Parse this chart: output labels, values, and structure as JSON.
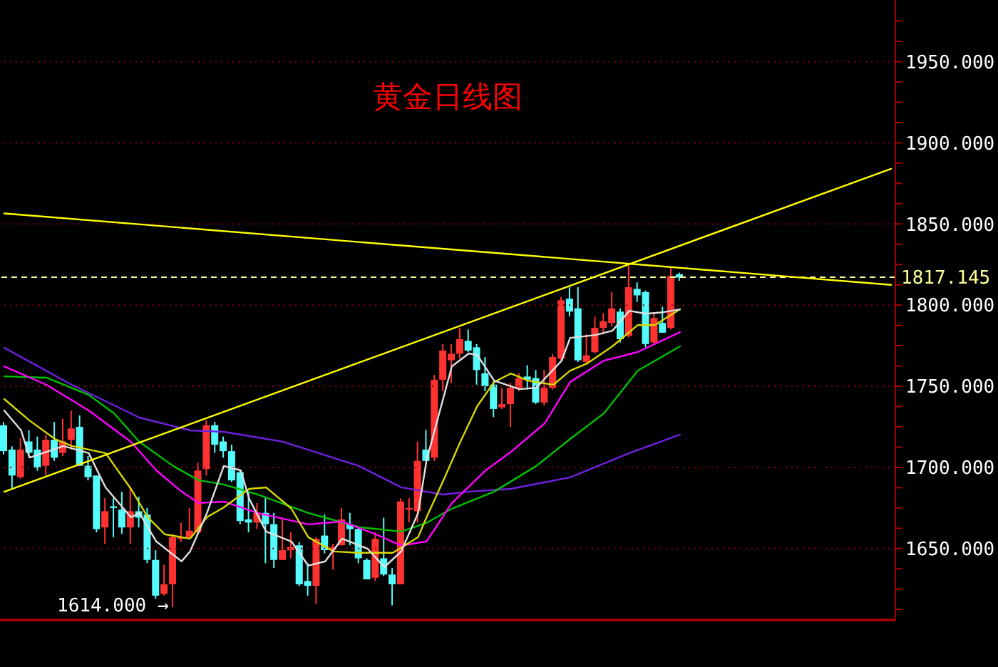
{
  "chart_data": {
    "type": "candlestick",
    "title": "黄金日线图",
    "categories": [
      null,
      null,
      null,
      null,
      null,
      null,
      null,
      null,
      null,
      null,
      null,
      null,
      null,
      null,
      null,
      null,
      null,
      null,
      null,
      null,
      null,
      null,
      null,
      null,
      null,
      null,
      null,
      null,
      null,
      null,
      null,
      null,
      null,
      null,
      null,
      null,
      null,
      null,
      null,
      null,
      null,
      null,
      null,
      null,
      null,
      null,
      null,
      null,
      null,
      null,
      null,
      null,
      null,
      null,
      null,
      null,
      null,
      null,
      null,
      null,
      null,
      null,
      null,
      null,
      null,
      null,
      null,
      null,
      null,
      null,
      null,
      null,
      null,
      null,
      null,
      null,
      null,
      null,
      null,
      null,
      null,
      null,
      null,
      null,
      null,
      null,
      null,
      null,
      null,
      null,
      null,
      null,
      null,
      null,
      null,
      null,
      null,
      null,
      null,
      null,
      null,
      null,
      null,
      null,
      null,
      null
    ],
    "ohlc": [
      [
        1726,
        1728,
        1708,
        1710
      ],
      [
        1711,
        1713,
        1687,
        1695
      ],
      [
        1694,
        1718,
        1693,
        1711
      ],
      [
        1716,
        1723,
        1707,
        1709
      ],
      [
        1711,
        1719,
        1698,
        1700
      ],
      [
        1701,
        1720,
        1695,
        1717
      ],
      [
        1717,
        1728,
        1704,
        1706
      ],
      [
        1709,
        1730,
        1707,
        1716
      ],
      [
        1717,
        1735,
        1711,
        1724
      ],
      [
        1725,
        1732,
        1701,
        1701
      ],
      [
        1701,
        1707,
        1692,
        1694
      ],
      [
        1695,
        1695,
        1660,
        1662
      ],
      [
        1663,
        1681,
        1653,
        1673
      ],
      [
        1676,
        1681,
        1657,
        1675
      ],
      [
        1674,
        1685,
        1659,
        1663
      ],
      [
        1663,
        1688,
        1653,
        1673
      ],
      [
        1673,
        1682,
        1663,
        1669
      ],
      [
        1671,
        1675,
        1641,
        1643
      ],
      [
        1643,
        1649,
        1619,
        1621
      ],
      [
        1622,
        1640,
        1621,
        1628
      ],
      [
        1628,
        1659,
        1614,
        1657
      ],
      [
        1656,
        1666,
        1654,
        1657
      ],
      [
        1657,
        1675,
        1656,
        1661
      ],
      [
        1660,
        1703,
        1659,
        1698
      ],
      [
        1699,
        1729,
        1695,
        1726
      ],
      [
        1726,
        1728,
        1709,
        1714
      ],
      [
        1716,
        1719,
        1706,
        1710
      ],
      [
        1710,
        1714,
        1691,
        1692
      ],
      [
        1697,
        1698,
        1665,
        1667
      ],
      [
        1668,
        1685,
        1660,
        1666
      ],
      [
        1666,
        1678,
        1662,
        1672
      ],
      [
        1672,
        1682,
        1641,
        1665
      ],
      [
        1665,
        1672,
        1638,
        1643
      ],
      [
        1643,
        1669,
        1643,
        1649
      ],
      [
        1649,
        1660,
        1644,
        1651
      ],
      [
        1652,
        1654,
        1627,
        1628
      ],
      [
        1630,
        1641,
        1621,
        1627
      ],
      [
        1627,
        1657,
        1616,
        1656
      ],
      [
        1658,
        1671,
        1647,
        1649
      ],
      [
        1649,
        1653,
        1637,
        1651
      ],
      [
        1652,
        1675,
        1652,
        1668
      ],
      [
        1665,
        1672,
        1652,
        1662
      ],
      [
        1662,
        1663,
        1641,
        1644
      ],
      [
        1643,
        1644,
        1631,
        1631
      ],
      [
        1632,
        1660,
        1630,
        1656
      ],
      [
        1644,
        1669,
        1633,
        1634
      ],
      [
        1634,
        1638,
        1615,
        1628
      ],
      [
        1628,
        1681,
        1628,
        1679
      ],
      [
        1674,
        1681,
        1666,
        1675
      ],
      [
        1673,
        1716,
        1666,
        1704
      ],
      [
        1711,
        1723,
        1704,
        1704
      ],
      [
        1706,
        1757,
        1704,
        1754
      ],
      [
        1754,
        1776,
        1747,
        1772
      ],
      [
        1766,
        1776,
        1752,
        1770
      ],
      [
        1770,
        1786,
        1767,
        1779
      ],
      [
        1778,
        1785,
        1771,
        1772
      ],
      [
        1774,
        1776,
        1751,
        1760
      ],
      [
        1758,
        1768,
        1747,
        1750
      ],
      [
        1751,
        1753,
        1731,
        1736
      ],
      [
        1737,
        1749,
        1736,
        1739
      ],
      [
        1739,
        1752,
        1725,
        1749
      ],
      [
        1749,
        1758,
        1747,
        1755
      ],
      [
        1756,
        1763,
        1748,
        1754
      ],
      [
        1755,
        1760,
        1739,
        1740
      ],
      [
        1740,
        1760,
        1738,
        1749
      ],
      [
        1749,
        1770,
        1748,
        1768
      ],
      [
        1767,
        1805,
        1766,
        1803
      ],
      [
        1804,
        1811,
        1793,
        1796
      ],
      [
        1798,
        1811,
        1765,
        1766
      ],
      [
        1765,
        1782,
        1764,
        1769
      ],
      [
        1771,
        1793,
        1770,
        1786
      ],
      [
        1786,
        1795,
        1782,
        1790
      ],
      [
        1789,
        1808,
        1787,
        1798
      ],
      [
        1796,
        1798,
        1777,
        1779
      ],
      [
        1781,
        1825,
        1780,
        1811
      ],
      [
        1810,
        1814,
        1802,
        1806
      ],
      [
        1808,
        1809,
        1774,
        1776
      ],
      [
        1777,
        1795,
        1776,
        1792
      ],
      [
        1789,
        1799,
        1783,
        1783
      ],
      [
        1786,
        1823,
        1785,
        1818
      ],
      [
        1819,
        1820,
        1815,
        1817
      ],
      null,
      null,
      null,
      null,
      null,
      null,
      null,
      null,
      null,
      null,
      null,
      null,
      null,
      null,
      null,
      null,
      null,
      null,
      null,
      null,
      null,
      null,
      null,
      null,
      null
    ],
    "colors": [
      "#54fcfc",
      "#54fcfc",
      "#ff3232",
      "#54fcfc",
      "#54fcfc",
      "#ff3232",
      "#54fcfc",
      "#ff3232",
      "#ff3232",
      "#54fcfc",
      "#54fcfc",
      "#54fcfc",
      "#ff3232",
      "#54fcfc",
      "#54fcfc",
      "#ff3232",
      "#54fcfc",
      "#54fcfc",
      "#54fcfc",
      "#ff3232",
      "#ff3232",
      "#ff3232",
      "#ff3232",
      "#ff3232",
      "#ff3232",
      "#54fcfc",
      "#54fcfc",
      "#54fcfc",
      "#54fcfc",
      "#54fcfc",
      "#ff3232",
      "#54fcfc",
      "#54fcfc",
      "#ff3232",
      "#ff3232",
      "#54fcfc",
      "#54fcfc",
      "#ff3232",
      "#54fcfc",
      "#ff3232",
      "#ff3232",
      "#54fcfc",
      "#54fcfc",
      "#54fcfc",
      "#ff3232",
      "#54fcfc",
      "#54fcfc",
      "#ff3232",
      "#ff3232",
      "#ff3232",
      "#54fcfc",
      "#ff3232",
      "#ff3232",
      "#ff3232",
      "#ff3232",
      "#54fcfc",
      "#54fcfc",
      "#54fcfc",
      "#54fcfc",
      "#ff3232",
      "#ff3232",
      "#ff3232",
      "#54fcfc",
      "#54fcfc",
      "#ff3232",
      "#ff3232",
      "#ff3232",
      "#54fcfc",
      "#54fcfc",
      "#ff3232",
      "#ff3232",
      "#ff3232",
      "#ff3232",
      "#54fcfc",
      "#ff3232",
      "#54fcfc",
      "#54fcfc",
      "#ff3232",
      "#54fcfc",
      "#ff3232",
      "#54fcfc",
      null,
      null,
      null,
      null,
      null,
      null,
      null,
      null,
      null,
      null,
      null,
      null,
      null,
      null,
      null,
      null,
      null,
      null,
      null,
      null,
      null,
      null,
      null,
      null,
      null
    ],
    "series": [
      {
        "type": "line",
        "color": "#7020e0",
        "values": [
          1773.7,
          null,
          null,
          null,
          null,
          null,
          null,
          null,
          1750.9,
          null,
          null,
          null,
          null,
          null,
          null,
          null,
          1730.7,
          null,
          null,
          null,
          null,
          null,
          1722.8,
          null,
          null,
          null,
          1721.9,
          null,
          null,
          null,
          null,
          null,
          null,
          1715.8,
          null,
          null,
          null,
          null,
          null,
          null,
          null,
          null,
          1700.9,
          null,
          null,
          null,
          null,
          1687.7,
          null,
          null,
          null,
          null,
          1683.3,
          null,
          null,
          1685.1,
          null,
          null,
          null,
          null,
          1686.8,
          null,
          null,
          null,
          null,
          null,
          null,
          1693.9,
          null,
          null,
          null,
          null,
          null,
          null,
          1708.8,
          null,
          null,
          null,
          null,
          null,
          1720.2,
          null,
          null,
          null,
          null,
          null,
          null,
          null,
          null,
          null,
          null,
          null,
          null,
          null,
          null,
          null,
          null,
          null,
          null,
          null,
          null,
          null,
          null,
          null,
          null,
          null
        ]
      },
      {
        "type": "line",
        "color": "#00c000",
        "values": [
          1756.1,
          null,
          null,
          null,
          null,
          1755.3,
          null,
          null,
          null,
          null,
          1744.7,
          null,
          null,
          1733.3,
          null,
          null,
          1715.8,
          null,
          null,
          null,
          1700.9,
          null,
          null,
          1692.1,
          null,
          null,
          1689.5,
          null,
          null,
          null,
          1683.3,
          null,
          null,
          null,
          null,
          null,
          1671.9,
          null,
          null,
          null,
          null,
          null,
          1663.2,
          null,
          null,
          null,
          null,
          1660.5,
          null,
          null,
          1665.8,
          null,
          null,
          1674.6,
          null,
          null,
          null,
          null,
          1685.1,
          null,
          null,
          null,
          null,
          1700.9,
          null,
          null,
          null,
          1717.5,
          null,
          null,
          null,
          1733.3,
          null,
          null,
          null,
          1759.6,
          null,
          null,
          null,
          null,
          1774.6,
          null,
          null,
          null,
          null,
          null,
          null,
          null,
          null,
          null,
          null,
          null,
          null,
          null,
          null,
          null,
          null,
          null,
          null,
          null,
          null,
          null,
          null,
          null,
          null,
          null
        ]
      },
      {
        "type": "line",
        "color": "#ff00ff",
        "values": [
          1762.3,
          null,
          null,
          null,
          null,
          1750.9,
          null,
          null,
          null,
          null,
          1735.1,
          null,
          null,
          null,
          null,
          1715.8,
          null,
          null,
          1698.2,
          null,
          null,
          1685.1,
          null,
          1678.1,
          null,
          null,
          1678.9,
          null,
          null,
          null,
          1671.9,
          null,
          null,
          null,
          null,
          null,
          1664.9,
          null,
          null,
          null,
          1666.7,
          null,
          null,
          null,
          1658.8,
          null,
          null,
          1651.8,
          null,
          null,
          1654.4,
          null,
          null,
          1678.1,
          null,
          null,
          null,
          1698.2,
          null,
          null,
          1709.6,
          null,
          null,
          null,
          1727.2,
          null,
          null,
          1752.6,
          null,
          null,
          null,
          1765.8,
          null,
          null,
          null,
          1771.1,
          null,
          null,
          null,
          null,
          1783.3,
          null,
          null,
          null,
          null,
          null,
          null,
          null,
          null,
          null,
          null,
          null,
          null,
          null,
          null,
          null,
          null,
          null,
          null,
          null,
          null,
          null,
          null,
          null,
          null,
          null
        ]
      },
      {
        "type": "line",
        "color": "#d8d800",
        "values": [
          1742.1,
          null,
          null,
          1728.9,
          null,
          null,
          1717.5,
          null,
          1713.2,
          null,
          null,
          null,
          1708.8,
          null,
          null,
          1686.8,
          null,
          1669.3,
          null,
          1658.8,
          null,
          null,
          1656.1,
          null,
          1669.3,
          null,
          1675.4,
          null,
          null,
          1686.8,
          null,
          1687.7,
          null,
          null,
          1674.6,
          null,
          1657.0,
          null,
          null,
          1648.2,
          null,
          null,
          1647.4,
          null,
          null,
          null,
          1647.4,
          null,
          null,
          1657.0,
          1669.3,
          null,
          1692.1,
          null,
          1715.8,
          null,
          1737.7,
          null,
          1752.6,
          null,
          1757.9,
          null,
          1753.5,
          null,
          null,
          1750.9,
          null,
          1759.6,
          null,
          1764.0,
          null,
          null,
          1774.6,
          null,
          null,
          1787.7,
          null,
          1787.7,
          null,
          null,
          1797.4,
          null,
          null,
          null,
          null,
          null,
          null,
          null,
          null,
          null,
          null,
          null,
          null,
          null,
          null,
          null,
          null,
          null,
          null,
          null,
          null,
          null,
          null,
          null,
          null,
          null
        ]
      },
      {
        "type": "line",
        "color": "#e0e0e0",
        "values": [
          1735.1,
          null,
          1722.8,
          1706.1,
          null,
          1709.6,
          null,
          1713.2,
          null,
          null,
          1708.8,
          null,
          1687.7,
          null,
          null,
          1669.3,
          1671.9,
          null,
          1654.4,
          null,
          null,
          1642.1,
          1648.2,
          null,
          1671.9,
          null,
          1700.9,
          null,
          1698.2,
          1680.7,
          null,
          1660.5,
          null,
          null,
          1654.4,
          null,
          1639.5,
          null,
          1642.1,
          null,
          1656.1,
          null,
          null,
          1650.0,
          null,
          1638.6,
          null,
          1648.2,
          null,
          1671.9,
          1704.4,
          null,
          null,
          1762.3,
          null,
          1770.2,
          1769.3,
          null,
          1753.5,
          null,
          null,
          1748.2,
          null,
          1749.1,
          null,
          null,
          1765.8,
          1779.8,
          null,
          null,
          1781.6,
          null,
          1784.2,
          null,
          1796.5,
          null,
          1794.7,
          null,
          1795.6,
          null,
          1797.4,
          null,
          null,
          null,
          null,
          null,
          null,
          null,
          null,
          null,
          null,
          null,
          null,
          null,
          null,
          null,
          null,
          null,
          null,
          null,
          null,
          null,
          null,
          null,
          null,
          null
        ]
      },
      {
        "type": "line",
        "color": "#ffff00",
        "values": [
          1856.5,
          null,
          null,
          null,
          null,
          null,
          null,
          null,
          null,
          null,
          null,
          null,
          null,
          null,
          null,
          null,
          null,
          null,
          null,
          null,
          null,
          null,
          null,
          null,
          null,
          null,
          null,
          null,
          null,
          null,
          null,
          null,
          null,
          null,
          null,
          null,
          null,
          null,
          null,
          null,
          null,
          null,
          null,
          null,
          null,
          null,
          null,
          null,
          null,
          null,
          null,
          null,
          null,
          null,
          null,
          null,
          null,
          null,
          null,
          null,
          null,
          null,
          null,
          null,
          null,
          null,
          null,
          null,
          null,
          null,
          null,
          null,
          null,
          null,
          null,
          null,
          null,
          null,
          null,
          null,
          null,
          null,
          null,
          null,
          null,
          null,
          null,
          null,
          null,
          null,
          null,
          null,
          null,
          null,
          null,
          null,
          null,
          null,
          null,
          null,
          null,
          null,
          null,
          null,
          null,
          1812.5
        ]
      },
      {
        "type": "line",
        "color": "#ffff00",
        "values": [
          1685,
          null,
          null,
          null,
          null,
          null,
          null,
          null,
          null,
          null,
          null,
          null,
          null,
          null,
          null,
          null,
          null,
          null,
          null,
          null,
          null,
          null,
          null,
          null,
          null,
          null,
          null,
          null,
          null,
          null,
          null,
          null,
          null,
          null,
          null,
          null,
          null,
          null,
          null,
          null,
          null,
          null,
          null,
          null,
          null,
          null,
          null,
          null,
          null,
          null,
          null,
          null,
          null,
          null,
          null,
          null,
          null,
          null,
          null,
          null,
          null,
          null,
          null,
          null,
          null,
          null,
          null,
          null,
          null,
          null,
          null,
          null,
          null,
          null,
          null,
          null,
          null,
          null,
          null,
          null,
          null,
          null,
          null,
          null,
          null,
          null,
          null,
          null,
          null,
          null,
          null,
          null,
          null,
          null,
          null,
          null,
          null,
          null,
          null,
          null,
          null,
          null,
          null,
          null,
          null,
          1884
        ]
      }
    ],
    "ylim": [
      1606,
      1988
    ],
    "yticks": [
      {
        "value": 1612.5,
        "label": null
      },
      {
        "value": 1625,
        "label": null
      },
      {
        "value": 1637.5,
        "label": null
      },
      {
        "value": 1650,
        "label": "1650.000"
      },
      {
        "value": 1662.5,
        "label": null
      },
      {
        "value": 1675,
        "label": null
      },
      {
        "value": 1687.5,
        "label": null
      },
      {
        "value": 1700,
        "label": "1700.000"
      },
      {
        "value": 1712.5,
        "label": null
      },
      {
        "value": 1725,
        "label": null
      },
      {
        "value": 1737.5,
        "label": null
      },
      {
        "value": 1750,
        "label": "1750.000"
      },
      {
        "value": 1762.5,
        "label": null
      },
      {
        "value": 1775,
        "label": null
      },
      {
        "value": 1787.5,
        "label": null
      },
      {
        "value": 1800,
        "label": "1800.000"
      },
      {
        "value": 1812.5,
        "label": null
      },
      {
        "value": 1825,
        "label": null
      },
      {
        "value": 1837.5,
        "label": null
      },
      {
        "value": 1850,
        "label": "1850.000"
      },
      {
        "value": 1862.5,
        "label": null
      },
      {
        "value": 1875,
        "label": null
      },
      {
        "value": 1887.5,
        "label": null
      },
      {
        "value": 1900,
        "label": "1900.000"
      },
      {
        "value": 1912.5,
        "label": null
      },
      {
        "value": 1925,
        "label": null
      },
      {
        "value": 1937.5,
        "label": null
      },
      {
        "value": 1950,
        "label": "1950.000"
      },
      {
        "value": 1962.5,
        "label": null
      },
      {
        "value": 1975,
        "label": null
      }
    ],
    "grid": "y",
    "tick_labels": "y",
    "ref_lines": [
      {
        "axis": "y",
        "value": 1817.145,
        "label": "1817.145",
        "color": "#ffff99",
        "line_style": "dashed"
      }
    ],
    "annotations": [
      "1614.000 →"
    ]
  }
}
